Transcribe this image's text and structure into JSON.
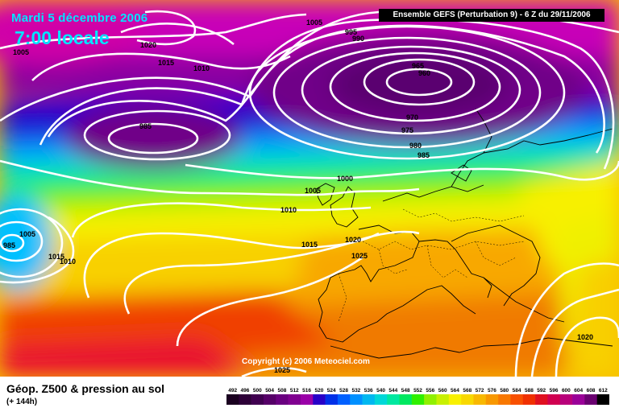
{
  "header": {
    "date": "Mardi 5 décembre 2006",
    "time": "7:00 locale",
    "run": "Ensemble GEFS (Perturbation 9) - 6 Z du 29/11/2006"
  },
  "copyright": "Copyright (c) 2006 Meteociel.com",
  "footer": {
    "title": "Géop. Z500 & pression au sol",
    "lead": "(+ 144h)"
  },
  "legend": {
    "labels": [
      "492",
      "496",
      "500",
      "504",
      "508",
      "512",
      "516",
      "520",
      "524",
      "528",
      "532",
      "536",
      "540",
      "544",
      "548",
      "552",
      "556",
      "560",
      "564",
      "568",
      "572",
      "576",
      "580",
      "584",
      "588",
      "592",
      "596",
      "600",
      "604",
      "608",
      "612"
    ],
    "colors": [
      "#1a0020",
      "#2d0038",
      "#400050",
      "#560068",
      "#6a0080",
      "#800090",
      "#9a00a8",
      "#2800c8",
      "#0030e8",
      "#0060ff",
      "#0090ff",
      "#00b8f0",
      "#00d8d8",
      "#00e8a0",
      "#00e860",
      "#30f000",
      "#90f000",
      "#c8f000",
      "#f8f000",
      "#f8d800",
      "#f8b800",
      "#f89800",
      "#f87800",
      "#f85000",
      "#f03000",
      "#e01020",
      "#d00050",
      "#b8007a",
      "#9a0098",
      "#6a0070",
      "#000000"
    ]
  },
  "isobars": [
    {
      "label": "1005",
      "lx": -999
    },
    {
      "label": "1020"
    },
    {
      "label": "1015"
    },
    {
      "label": "1010"
    },
    {
      "label": "995"
    },
    {
      "label": "990"
    },
    {
      "label": "965"
    },
    {
      "label": "960"
    },
    {
      "label": "985"
    },
    {
      "label": "970"
    },
    {
      "label": "975"
    },
    {
      "label": "980"
    },
    {
      "label": "1000"
    },
    {
      "label": "1025"
    }
  ],
  "map_labels": [
    "1005",
    "1020",
    "1015",
    "1010",
    "1005",
    "995",
    "990",
    "965",
    "960",
    "985",
    "970",
    "975",
    "980",
    "985",
    "1000",
    "1005",
    "1010",
    "1015",
    "1020",
    "1025",
    "1005",
    "985",
    "1015",
    "1010",
    "1020",
    "1025"
  ]
}
